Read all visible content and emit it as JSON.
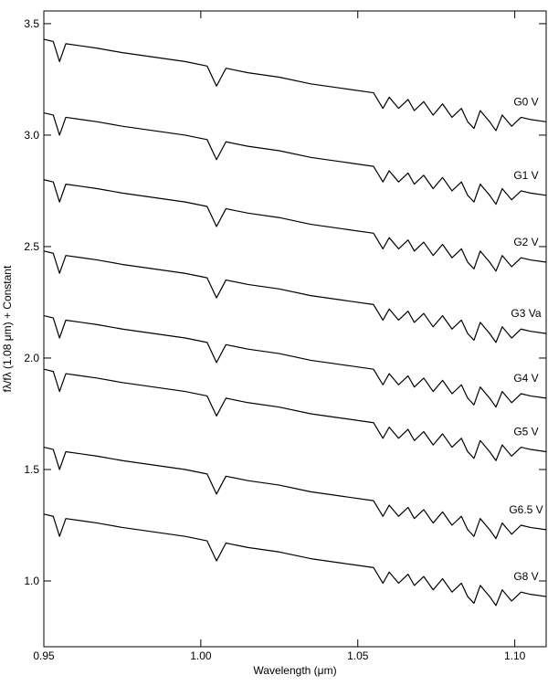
{
  "chart_data": {
    "type": "line",
    "x_label": "Wavelength (μm)",
    "y_label": "fλ/fλ (1.08 μm) + Constant",
    "color": "#000000",
    "xlim": [
      0.95,
      1.11
    ],
    "ylim": [
      0.705,
      3.557
    ],
    "xticks": [
      {
        "value": 0.95,
        "label": "0.95"
      },
      {
        "value": 1.0,
        "label": "1.00"
      },
      {
        "value": 1.05,
        "label": "1.05"
      },
      {
        "value": 1.1,
        "label": "1.10"
      }
    ],
    "yticks": [
      {
        "value": 1.0,
        "label": "1.0"
      },
      1.5,
      {
        "value": 2.0,
        "label": "2.0"
      },
      2.5,
      {
        "value": 3.0,
        "label": "3.0"
      },
      3.5
    ],
    "x": [
      0.95,
      0.953,
      0.955,
      0.957,
      0.962,
      0.967,
      0.975,
      0.985,
      0.995,
      1.002,
      1.005,
      1.008,
      1.015,
      1.025,
      1.035,
      1.045,
      1.055,
      1.058,
      1.06,
      1.063,
      1.066,
      1.068,
      1.071,
      1.074,
      1.077,
      1.08,
      1.083,
      1.085,
      1.087,
      1.089,
      1.092,
      1.094,
      1.096,
      1.099,
      1.102,
      1.105,
      1.11
    ],
    "series": [
      {
        "name": "G0 V",
        "values": [
          3.43,
          3.42,
          3.33,
          3.41,
          3.4,
          3.39,
          3.37,
          3.35,
          3.33,
          3.31,
          3.22,
          3.3,
          3.28,
          3.26,
          3.23,
          3.21,
          3.19,
          3.12,
          3.17,
          3.12,
          3.16,
          3.11,
          3.15,
          3.09,
          3.14,
          3.08,
          3.12,
          3.06,
          3.03,
          3.11,
          3.06,
          3.02,
          3.09,
          3.04,
          3.08,
          3.07,
          3.06
        ]
      },
      {
        "name": "G1 V",
        "values": [
          3.1,
          3.09,
          3.0,
          3.08,
          3.07,
          3.06,
          3.04,
          3.02,
          3.0,
          2.98,
          2.89,
          2.97,
          2.95,
          2.93,
          2.9,
          2.88,
          2.86,
          2.79,
          2.84,
          2.79,
          2.83,
          2.78,
          2.82,
          2.76,
          2.81,
          2.75,
          2.79,
          2.73,
          2.7,
          2.78,
          2.73,
          2.69,
          2.76,
          2.71,
          2.75,
          2.74,
          2.73
        ]
      },
      {
        "name": "G2 V",
        "values": [
          2.8,
          2.79,
          2.7,
          2.78,
          2.77,
          2.76,
          2.74,
          2.72,
          2.7,
          2.68,
          2.59,
          2.67,
          2.65,
          2.63,
          2.6,
          2.58,
          2.56,
          2.49,
          2.54,
          2.49,
          2.53,
          2.48,
          2.52,
          2.46,
          2.51,
          2.45,
          2.49,
          2.43,
          2.4,
          2.48,
          2.43,
          2.39,
          2.46,
          2.41,
          2.45,
          2.44,
          2.43
        ]
      },
      {
        "name": "G3 Va",
        "values": [
          2.48,
          2.47,
          2.38,
          2.46,
          2.45,
          2.44,
          2.42,
          2.4,
          2.38,
          2.36,
          2.27,
          2.35,
          2.33,
          2.31,
          2.28,
          2.26,
          2.24,
          2.17,
          2.22,
          2.17,
          2.21,
          2.16,
          2.2,
          2.14,
          2.19,
          2.13,
          2.17,
          2.11,
          2.08,
          2.16,
          2.11,
          2.07,
          2.14,
          2.09,
          2.13,
          2.12,
          2.11
        ]
      },
      {
        "name": "G4 V",
        "values": [
          2.19,
          2.18,
          2.09,
          2.17,
          2.16,
          2.15,
          2.13,
          2.11,
          2.09,
          2.07,
          1.98,
          2.06,
          2.04,
          2.02,
          1.99,
          1.97,
          1.95,
          1.88,
          1.93,
          1.88,
          1.92,
          1.87,
          1.91,
          1.85,
          1.9,
          1.84,
          1.88,
          1.82,
          1.79,
          1.87,
          1.82,
          1.78,
          1.85,
          1.8,
          1.84,
          1.83,
          1.82
        ]
      },
      {
        "name": "G5 V",
        "values": [
          1.95,
          1.94,
          1.85,
          1.93,
          1.92,
          1.91,
          1.89,
          1.87,
          1.85,
          1.83,
          1.74,
          1.82,
          1.8,
          1.78,
          1.75,
          1.73,
          1.71,
          1.64,
          1.69,
          1.64,
          1.68,
          1.63,
          1.67,
          1.61,
          1.66,
          1.6,
          1.64,
          1.58,
          1.55,
          1.63,
          1.58,
          1.54,
          1.61,
          1.56,
          1.6,
          1.59,
          1.58
        ]
      },
      {
        "name": "G6.5 V",
        "values": [
          1.6,
          1.59,
          1.5,
          1.58,
          1.57,
          1.56,
          1.54,
          1.52,
          1.5,
          1.48,
          1.39,
          1.47,
          1.45,
          1.43,
          1.4,
          1.38,
          1.36,
          1.29,
          1.34,
          1.29,
          1.33,
          1.28,
          1.32,
          1.26,
          1.31,
          1.25,
          1.29,
          1.23,
          1.2,
          1.28,
          1.23,
          1.19,
          1.26,
          1.21,
          1.25,
          1.24,
          1.23
        ]
      },
      {
        "name": "G8 V",
        "values": [
          1.3,
          1.29,
          1.2,
          1.28,
          1.27,
          1.26,
          1.24,
          1.22,
          1.2,
          1.18,
          1.09,
          1.17,
          1.15,
          1.13,
          1.1,
          1.08,
          1.06,
          0.99,
          1.04,
          0.99,
          1.03,
          0.98,
          1.02,
          0.96,
          1.01,
          0.95,
          0.99,
          0.93,
          0.9,
          0.98,
          0.93,
          0.89,
          0.96,
          0.91,
          0.95,
          0.94,
          0.93
        ]
      }
    ]
  }
}
